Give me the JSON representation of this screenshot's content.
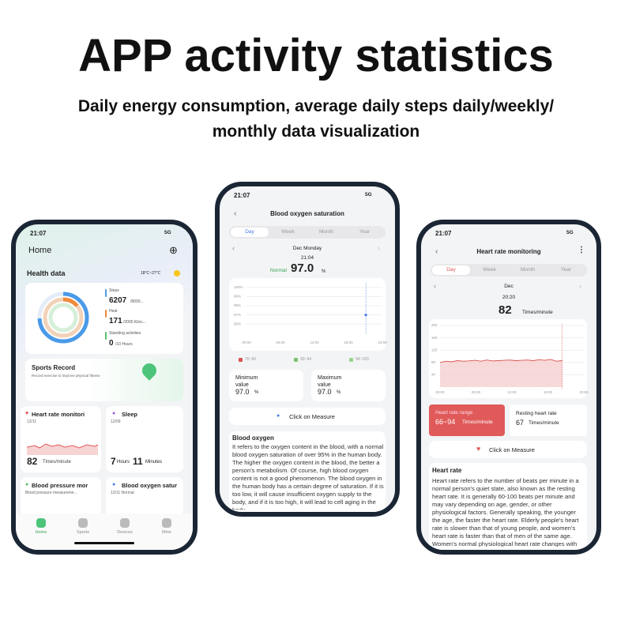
{
  "header": {
    "title": "APP activity statistics",
    "subtitle": [
      "Daily energy consumption, average daily steps daily/weekly/",
      "monthly data visualization"
    ]
  },
  "home_screen": {
    "time": "21:07",
    "network": "5G",
    "title": "Home",
    "section": "Health data",
    "weather": "18°C~27°C",
    "steps": {
      "label": "Steps",
      "value": 6207,
      "goal": "/8000..."
    },
    "heat": {
      "label": "Heat",
      "value": 171,
      "goal": "/2000 Kiloc..."
    },
    "standing": {
      "label": "Standing activities",
      "value": 0,
      "goal": "/10 Hours"
    },
    "sports": {
      "title": "Sports Record",
      "subtitle": "Record exercise to improve physical fitness"
    },
    "heart": {
      "title": "Heart rate monitori",
      "date": "12/11",
      "value": 82,
      "unit": "Times/minute"
    },
    "sleep": {
      "title": "Sleep",
      "date": "12/09",
      "hours": 7,
      "hours_unit": "Hours",
      "minutes": 11,
      "minutes_unit": "Minutes"
    },
    "pressure": {
      "title": "Blood pressure mor",
      "subtitle": "Blood pressure measureme..."
    },
    "oxygen": {
      "title": "Blood oxygen satur",
      "subtitle": "12/11 Normal"
    },
    "nav": [
      "Home",
      "Sports",
      "Devices",
      "Mine"
    ]
  },
  "oxygen_screen": {
    "time": "21:07",
    "network": "5G",
    "title": "Blood oxygen saturation",
    "tabs": [
      "Day",
      "Week",
      "Month",
      "Year"
    ],
    "date": "Dec Monday",
    "clock": "21:04",
    "status": "Normal",
    "value": "97.0",
    "unit": "%",
    "chart": {
      "ylim": [
        95.5,
        100.5
      ],
      "yticks": [
        {
          "value": 100,
          "label": "100%"
        },
        {
          "value": 99,
          "label": "99%"
        },
        {
          "value": 98,
          "label": "98%"
        },
        {
          "value": 97,
          "label": "97%"
        },
        {
          "value": 96,
          "label": "96%"
        }
      ],
      "xlabels": [
        "00:00",
        "06:00",
        "12:00",
        "18:00",
        "23:59"
      ]
    },
    "legend": [
      "70~90",
      "90~94",
      "94~100"
    ],
    "minimum": {
      "label": "Minimum value",
      "value": "97.0",
      "unit": "%"
    },
    "maximum": {
      "label": "Maximum value",
      "value": "97.0",
      "unit": "%"
    },
    "button": "Click on Measure",
    "info": {
      "title": "Blood oxygen",
      "text": "It refers to the oxygen content in the blood, with a normal blood oxygen saturation of over 95% in the human body. The higher the oxygen content in the blood, the better a person's metabolism. Of course, high blood oxygen content is not a good phenomenon. The blood oxygen in the human body has a certain degree of saturation. If it is too low, it will cause insufficient oxygen supply to the body, and if it is too high, it will lead to cell aging in the body."
    }
  },
  "heart_screen": {
    "time": "21:07",
    "network": "5G",
    "title": "Heart rate monitoring",
    "tabs": [
      "Day",
      "Week",
      "Month",
      "Year"
    ],
    "date": "Dec",
    "clock": "20:20",
    "value": 82,
    "unit": "Times/minute",
    "chart": {
      "ylim": [
        0,
        200
      ],
      "yticks": [
        40,
        80,
        120,
        160,
        200
      ],
      "xlabels": [
        "00:00",
        "06:00",
        "12:00",
        "18:00",
        "23:59"
      ],
      "values": [
        80,
        84,
        82,
        86,
        84,
        85,
        87,
        84,
        88,
        85,
        86,
        87,
        88,
        86,
        87,
        88,
        86,
        89,
        87,
        90,
        84,
        86
      ]
    },
    "range": {
      "label": "Heart rate range",
      "value": "66~94",
      "unit": "Times/minute"
    },
    "resting": {
      "label": "Resting heart rate",
      "value": 67,
      "unit": "Times/minute"
    },
    "button": "Click on Measure",
    "info": {
      "title": "Heart rate",
      "text": "Heart rate refers to the number of beats per minute in a normal person's quiet state, also known as the resting heart rate. It is generally 60-100 beats per minute and may vary depending on age, gender, or other physiological factors. Generally speaking, the younger the age, the faster the heart rate. Elderly people's heart rate is slower than that of young people, and women's heart rate is faster than that of men of the same age. Women's normal physiological heart rate changes with the cycle."
    }
  }
}
